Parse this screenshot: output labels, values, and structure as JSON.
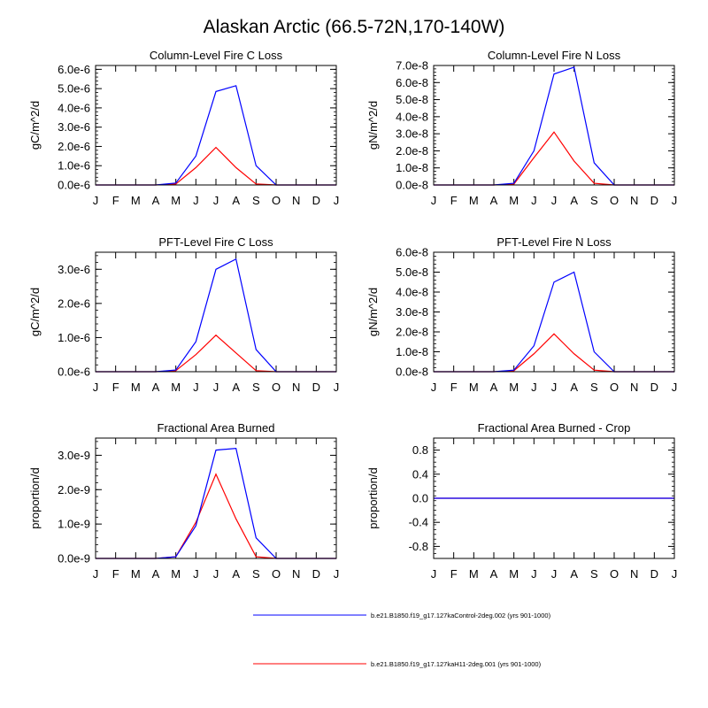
{
  "title": "Alaskan Arctic (66.5-72N,170-140W)",
  "month_labels": [
    "J",
    "F",
    "M",
    "A",
    "M",
    "J",
    "J",
    "A",
    "S",
    "O",
    "N",
    "D",
    "J"
  ],
  "series_colors": [
    "#0000ff",
    "#ff0000"
  ],
  "legend": [
    {
      "label": "b.e21.B1850.f19_g17.127kaControl-2deg.002 (yrs 901-1000)",
      "color": "#0000ff"
    },
    {
      "label": "b.e21.B1850.f19_g17.127kaH11-2deg.001 (yrs 901-1000)",
      "color": "#ff0000"
    }
  ],
  "chart_data": [
    {
      "type": "line",
      "title": "Column-Level Fire C Loss",
      "ylabel": "gC/m^2/d",
      "ylim": [
        0,
        6.2e-06
      ],
      "yticks": [
        0,
        1e-06,
        2e-06,
        3e-06,
        4e-06,
        5e-06,
        6e-06
      ],
      "ytick_labels": [
        "0.0e-6",
        "1.0e-6",
        "2.0e-6",
        "3.0e-6",
        "4.0e-6",
        "5.0e-6",
        "6.0e-6"
      ],
      "series": [
        {
          "name": "b.e21.B1850.f19_g17.127kaControl-2deg.002 (yrs 901-1000)",
          "values": [
            0,
            0,
            0,
            0,
            1e-07,
            1.5e-06,
            4.85e-06,
            5.15e-06,
            1e-06,
            0,
            0,
            0,
            0
          ]
        },
        {
          "name": "b.e21.B1850.f19_g17.127kaH11-2deg.001 (yrs 901-1000)",
          "values": [
            0,
            0,
            0,
            0,
            5e-08,
            9e-07,
            1.95e-06,
            9e-07,
            5e-08,
            0,
            0,
            0,
            0
          ]
        }
      ]
    },
    {
      "type": "line",
      "title": "Column-Level Fire N Loss",
      "ylabel": "gN/m^2/d",
      "ylim": [
        0,
        7e-08
      ],
      "yticks": [
        0,
        1e-08,
        2e-08,
        3e-08,
        4e-08,
        5e-08,
        6e-08,
        7e-08
      ],
      "ytick_labels": [
        "0.0e-8",
        "1.0e-8",
        "2.0e-8",
        "3.0e-8",
        "4.0e-8",
        "5.0e-8",
        "6.0e-8",
        "7.0e-8"
      ],
      "series": [
        {
          "name": "b.e21.B1850.f19_g17.127kaControl-2deg.002 (yrs 901-1000)",
          "values": [
            0,
            0,
            0,
            0,
            1e-09,
            2e-08,
            6.5e-08,
            6.9e-08,
            1.3e-08,
            0,
            0,
            0,
            0
          ]
        },
        {
          "name": "b.e21.B1850.f19_g17.127kaH11-2deg.001 (yrs 901-1000)",
          "values": [
            0,
            0,
            0,
            0,
            5e-10,
            1.6e-08,
            3.1e-08,
            1.4e-08,
            1e-09,
            0,
            0,
            0,
            0
          ]
        }
      ]
    },
    {
      "type": "line",
      "title": "PFT-Level Fire C Loss",
      "ylabel": "gC/m^2/d",
      "ylim": [
        0,
        3.5e-06
      ],
      "yticks": [
        0,
        1e-06,
        2e-06,
        3e-06
      ],
      "ytick_labels": [
        "0.0e-6",
        "1.0e-6",
        "2.0e-6",
        "3.0e-6"
      ],
      "series": [
        {
          "name": "b.e21.B1850.f19_g17.127kaControl-2deg.002 (yrs 901-1000)",
          "values": [
            0,
            0,
            0,
            0,
            5e-08,
            8.8e-07,
            3e-06,
            3.3e-06,
            6.5e-07,
            0,
            0,
            0,
            0
          ]
        },
        {
          "name": "b.e21.B1850.f19_g17.127kaH11-2deg.001 (yrs 901-1000)",
          "values": [
            0,
            0,
            0,
            0,
            3e-08,
            5e-07,
            1.07e-06,
            5.5e-07,
            3e-08,
            0,
            0,
            0,
            0
          ]
        }
      ]
    },
    {
      "type": "line",
      "title": "PFT-Level Fire N Loss",
      "ylabel": "gN/m^2/d",
      "ylim": [
        0,
        6e-08
      ],
      "yticks": [
        0,
        1e-08,
        2e-08,
        3e-08,
        4e-08,
        5e-08,
        6e-08
      ],
      "ytick_labels": [
        "0.0e-8",
        "1.0e-8",
        "2.0e-8",
        "3.0e-8",
        "4.0e-8",
        "5.0e-8",
        "6.0e-8"
      ],
      "series": [
        {
          "name": "b.e21.B1850.f19_g17.127kaControl-2deg.002 (yrs 901-1000)",
          "values": [
            0,
            0,
            0,
            0,
            8e-10,
            1.3e-08,
            4.5e-08,
            5e-08,
            1e-08,
            0,
            0,
            0,
            0
          ]
        },
        {
          "name": "b.e21.B1850.f19_g17.127kaH11-2deg.001 (yrs 901-1000)",
          "values": [
            0,
            0,
            0,
            0,
            5e-10,
            9e-09,
            1.9e-08,
            9e-09,
            8e-10,
            0,
            0,
            0,
            0
          ]
        }
      ]
    },
    {
      "type": "line",
      "title": "Fractional Area Burned",
      "ylabel": "proportion/d",
      "ylim": [
        0,
        3.5e-09
      ],
      "yticks": [
        0,
        1e-09,
        2e-09,
        3e-09
      ],
      "ytick_labels": [
        "0.0e-9",
        "1.0e-9",
        "2.0e-9",
        "3.0e-9"
      ],
      "series": [
        {
          "name": "b.e21.B1850.f19_g17.127kaControl-2deg.002 (yrs 901-1000)",
          "values": [
            0,
            0,
            0,
            0,
            5e-11,
            9.5e-10,
            3.15e-09,
            3.2e-09,
            6e-10,
            0,
            0,
            0,
            0
          ]
        },
        {
          "name": "b.e21.B1850.f19_g17.127kaH11-2deg.001 (yrs 901-1000)",
          "values": [
            0,
            0,
            0,
            0,
            5e-11,
            1.05e-09,
            2.45e-09,
            1.15e-09,
            5e-11,
            0,
            0,
            0,
            0
          ]
        }
      ]
    },
    {
      "type": "line",
      "title": "Fractional Area Burned - Crop",
      "ylabel": "proportion/d",
      "ylim": [
        -1.0,
        1.0
      ],
      "yticks": [
        -0.8,
        -0.4,
        0,
        0.4,
        0.8
      ],
      "ytick_labels": [
        "-0.8",
        "-0.4",
        "0.0",
        "0.4",
        "0.8"
      ],
      "series": [
        {
          "name": "b.e21.B1850.f19_g17.127kaControl-2deg.002 (yrs 901-1000)",
          "values": [
            0,
            0,
            0,
            0,
            0,
            0,
            0,
            0,
            0,
            0,
            0,
            0,
            0
          ]
        },
        {
          "name": "b.e21.B1850.f19_g17.127kaH11-2deg.001 (yrs 901-1000)",
          "values": [
            0,
            0,
            0,
            0,
            0,
            0,
            0,
            0,
            0,
            0,
            0,
            0,
            0
          ]
        }
      ]
    }
  ]
}
